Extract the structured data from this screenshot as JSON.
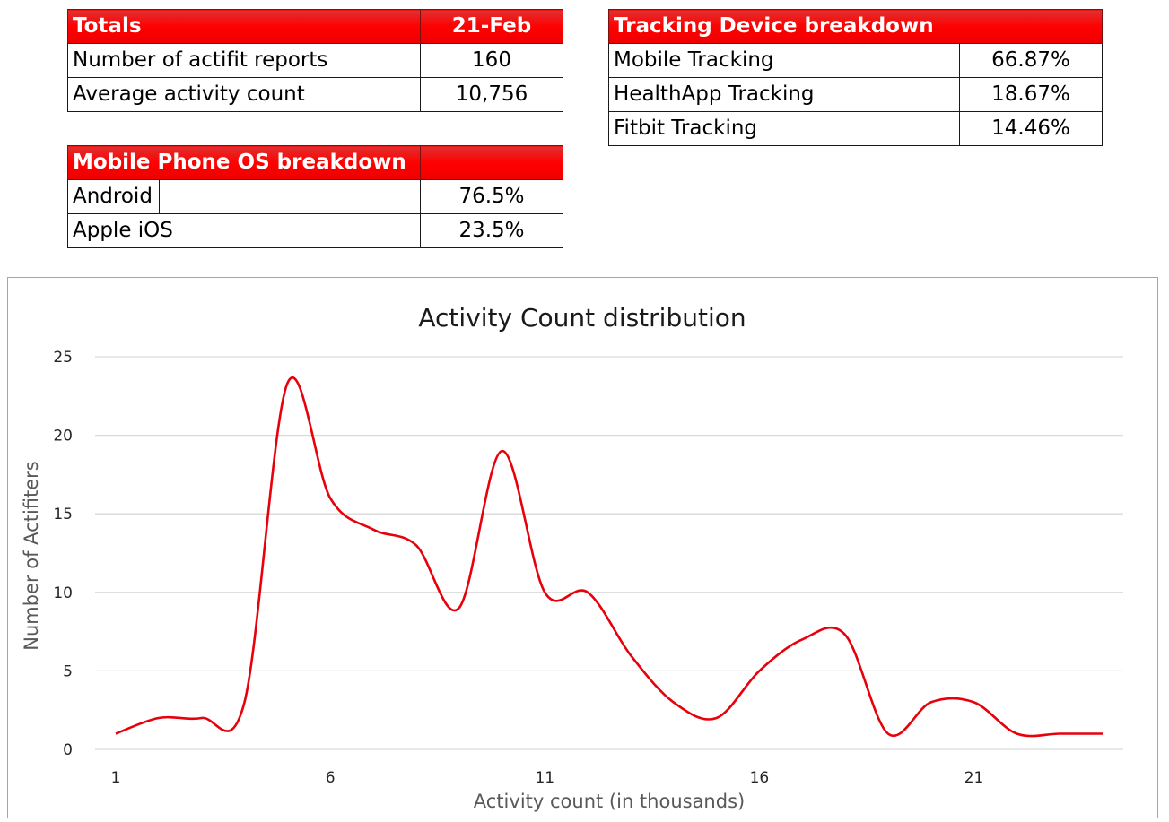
{
  "totals": {
    "header_label": "Totals",
    "header_date": "21-Feb",
    "rows": [
      {
        "label": "Number of actifit reports",
        "value": "160"
      },
      {
        "label": "Average activity count",
        "value": "10,756"
      }
    ]
  },
  "tracking": {
    "header_label": "Tracking Device breakdown",
    "rows": [
      {
        "label": "Mobile Tracking",
        "value": "66.87%"
      },
      {
        "label": "HealthApp Tracking",
        "value": "18.67%"
      },
      {
        "label": "Fitbit Tracking",
        "value": "14.46%"
      }
    ]
  },
  "os": {
    "header_label": "Mobile Phone OS breakdown",
    "rows": [
      {
        "label": "Android",
        "value": "76.5%"
      },
      {
        "label": "Apple iOS",
        "value": "23.5%"
      }
    ]
  },
  "colors": {
    "header_red": "#ff0000",
    "line_red": "#e8000b",
    "grid": "#d9d9d9"
  },
  "chart_data": {
    "type": "line",
    "title": "Activity Count distribution",
    "xlabel": "Activity count (in thousands)",
    "ylabel": "Number of Actifiters",
    "x": [
      1,
      2,
      3,
      4,
      5,
      6,
      7,
      8,
      9,
      10,
      11,
      12,
      13,
      14,
      15,
      16,
      17,
      18,
      19,
      20,
      21,
      22,
      23,
      24
    ],
    "values": [
      1,
      2,
      2,
      3,
      23.3,
      16,
      14,
      13,
      9,
      19,
      10,
      10,
      6,
      3,
      2,
      5,
      7,
      7.3,
      1,
      3,
      3,
      1,
      1,
      1
    ],
    "xticks": [
      1,
      6,
      11,
      16,
      21
    ],
    "yticks": [
      0,
      5,
      10,
      15,
      20,
      25
    ],
    "xlim": [
      1,
      24
    ],
    "ylim": [
      0,
      25
    ],
    "grid": "horizontal",
    "smoothed": true,
    "legend": "none"
  }
}
